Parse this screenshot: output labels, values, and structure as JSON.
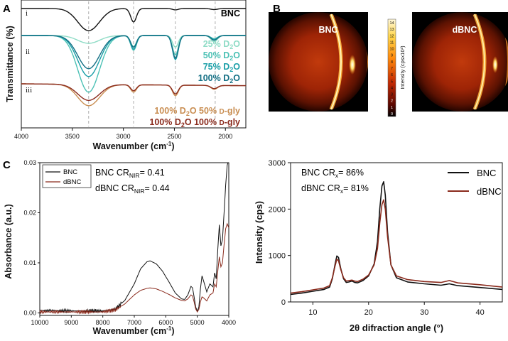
{
  "panel_a": {
    "letter": "A",
    "ylabel": "Transmittance (%)",
    "xlabel_pre": "Wavenumber (cm",
    "xlabel_sup": "-1",
    "xlabel_post": ")",
    "subpanels": [
      "i",
      "ii",
      "iii"
    ],
    "legend_i": {
      "label": "BNC",
      "color": "#111111"
    },
    "legend_ii": [
      {
        "pre": "25%  D",
        "sub": "2",
        "post": "O",
        "color": "#8fdcc6"
      },
      {
        "pre": "50%  D",
        "sub": "2",
        "post": "O",
        "color": "#4cc1b5"
      },
      {
        "pre": "75%  D",
        "sub": "2",
        "post": "O",
        "color": "#1a9fa8"
      },
      {
        "pre": "100% D",
        "sub": "2",
        "post": "O",
        "color": "#146f84"
      }
    ],
    "legend_iii": [
      {
        "pre": "100% D",
        "sub": "2",
        "post": "O 50%  ",
        "small": "D",
        "tail": "-gly",
        "color": "#c98e52"
      },
      {
        "pre": "100% D",
        "sub": "2",
        "post": "O 100% ",
        "small": "D",
        "tail": "-gly",
        "color": "#8a2a1c"
      }
    ]
  },
  "panel_b": {
    "letter": "B",
    "images": [
      {
        "label": "BNC"
      },
      {
        "label": "dBNC"
      }
    ],
    "colorbar_label": "Intensity (cpsx10³)",
    "colorbar_ticks": [
      "0",
      "1",
      "2",
      "3",
      "4",
      "5",
      "6",
      "7",
      "8",
      "9",
      "10",
      "11",
      "12",
      "13",
      "14"
    ]
  },
  "panel_c": {
    "letter": "C",
    "nir_annot_1": {
      "pre": "BNC CR",
      "sub": "NIR",
      "post": "= 0.41"
    },
    "nir_annot_2": {
      "pre": "dBNC CR",
      "sub": "NIR",
      "post": "= 0.44"
    },
    "xrd_annot_1": {
      "pre": "BNC CR",
      "sub": "x",
      "post": "= 86%"
    },
    "xrd_annot_2": {
      "pre": "dBNC CR",
      "sub": "x",
      "post": "= 81%"
    }
  },
  "chart_data": [
    {
      "type": "line",
      "id": "ftir",
      "xlabel": "Wavenumber (cm-1)",
      "ylabel": "Transmittance (%)",
      "xlim": [
        4000,
        1800
      ],
      "x_ticks": [
        4000,
        3500,
        3000,
        2500,
        2000
      ],
      "reference_lines": [
        3340,
        2900,
        2490,
        2100
      ],
      "grid": false,
      "series": [
        {
          "name": "BNC",
          "color": "#111111",
          "group": "i",
          "depths": [
            0.82,
            0.5,
            0.05,
            0.04
          ]
        },
        {
          "name": "25% D2O",
          "color": "#8fdcc6",
          "group": "ii",
          "depths": [
            0.2,
            0.28,
            0.3,
            0.16
          ]
        },
        {
          "name": "50% D2O",
          "color": "#4cc1b5",
          "group": "ii",
          "depths": [
            1.45,
            0.38,
            0.5,
            0.08
          ]
        },
        {
          "name": "75% D2O",
          "color": "#1a9fa8",
          "group": "ii",
          "depths": [
            1.05,
            0.35,
            0.62,
            0.1
          ]
        },
        {
          "name": "100% D2O",
          "color": "#146f84",
          "group": "ii",
          "depths": [
            0.85,
            0.3,
            0.58,
            0.12
          ]
        },
        {
          "name": "100% D2O 50% D-gly",
          "color": "#c98e52",
          "group": "iii",
          "depths": [
            1.0,
            0.35,
            0.5,
            0.18
          ]
        },
        {
          "name": "100% D2O 100% D-gly",
          "color": "#8a2a1c",
          "group": "iii",
          "depths": [
            0.75,
            0.28,
            0.42,
            0.15
          ]
        }
      ]
    },
    {
      "type": "line",
      "id": "nir",
      "xlabel": "Wavenumber (cm-1)",
      "ylabel": "Absorbance (a.u.)",
      "xlim": [
        10000,
        4000
      ],
      "ylim": [
        -0.0005,
        0.03
      ],
      "x_ticks": [
        10000,
        9000,
        8000,
        7000,
        6000,
        5000,
        4000
      ],
      "y_ticks": [
        0.0,
        0.01,
        0.02,
        0.03
      ],
      "y_tick_labels": [
        "0.00",
        "0.01",
        "0.02",
        "0.03"
      ],
      "legend_placement": "top-left",
      "series": [
        {
          "name": "BNC",
          "color": "#111111",
          "x": [
            10000,
            9000,
            8000,
            7600,
            7300,
            7000,
            6800,
            6600,
            6500,
            6300,
            6100,
            5900,
            5700,
            5500,
            5400,
            5300,
            5200,
            5150,
            5100,
            5050,
            5000,
            4950,
            4900,
            4850,
            4800,
            4700,
            4600,
            4500,
            4450,
            4400,
            4350,
            4300,
            4250,
            4200,
            4150,
            4100,
            4050,
            4000
          ],
          "y": [
            0.0005,
            0.0004,
            0.0004,
            0.0008,
            0.0025,
            0.0058,
            0.0088,
            0.0102,
            0.0104,
            0.0098,
            0.0083,
            0.0062,
            0.004,
            0.0028,
            0.0027,
            0.0036,
            0.0053,
            0.005,
            0.0032,
            0.0012,
            0.0003,
            0.0012,
            0.0048,
            0.0074,
            0.0064,
            0.0042,
            0.0058,
            0.0052,
            0.008,
            0.0068,
            0.0126,
            0.0176,
            0.0134,
            0.0146,
            0.0198,
            0.0255,
            0.0295,
            0.031
          ]
        },
        {
          "name": "dBNC",
          "color": "#8a2a1c",
          "x": [
            10000,
            9000,
            8000,
            7600,
            7300,
            7000,
            6800,
            6600,
            6500,
            6300,
            6100,
            5900,
            5700,
            5500,
            5400,
            5300,
            5200,
            5150,
            5100,
            5050,
            5000,
            4950,
            4900,
            4850,
            4800,
            4700,
            4600,
            4500,
            4450,
            4400,
            4350,
            4300,
            4250,
            4200,
            4150,
            4100,
            4050,
            4000
          ],
          "y": [
            0.0002,
            0.0002,
            0.0002,
            0.0006,
            0.0018,
            0.0036,
            0.0045,
            0.0049,
            0.005,
            0.0048,
            0.0043,
            0.0037,
            0.003,
            0.0025,
            0.0024,
            0.0028,
            0.0036,
            0.0034,
            0.0022,
            0.0008,
            0.0002,
            0.0007,
            0.0022,
            0.0032,
            0.003,
            0.0024,
            0.0036,
            0.004,
            0.0058,
            0.0052,
            0.0083,
            0.0112,
            0.0092,
            0.01,
            0.0135,
            0.0168,
            0.0178,
            0.017
          ]
        }
      ]
    },
    {
      "type": "line",
      "id": "xrd",
      "xlabel": "2θ difraction angle (°)",
      "ylabel": "Intensity (cps)",
      "xlim": [
        6,
        44
      ],
      "ylim": [
        0,
        3000
      ],
      "x_ticks": [
        10,
        20,
        30,
        40
      ],
      "y_ticks": [
        0,
        1000,
        2000,
        3000
      ],
      "legend_placement": "top-right",
      "series": [
        {
          "name": "BNC",
          "color": "#111111",
          "x": [
            6,
            8,
            10,
            12,
            13,
            13.5,
            14,
            14.3,
            14.6,
            15,
            15.5,
            16,
            16.5,
            17,
            17.5,
            18,
            19,
            20,
            21,
            21.6,
            22,
            22.4,
            22.7,
            23,
            23.4,
            24,
            25,
            27,
            30,
            33,
            34.5,
            36,
            40,
            44
          ],
          "y": [
            160,
            190,
            230,
            270,
            320,
            500,
            820,
            990,
            960,
            720,
            500,
            420,
            430,
            450,
            420,
            410,
            460,
            560,
            820,
            1300,
            2000,
            2500,
            2590,
            2300,
            1500,
            800,
            520,
            430,
            390,
            360,
            390,
            350,
            310,
            270
          ]
        },
        {
          "name": "dBNC",
          "color": "#8a2a1c",
          "x": [
            6,
            8,
            10,
            12,
            13,
            13.5,
            14,
            14.3,
            14.6,
            15,
            15.5,
            16,
            16.5,
            17,
            17.5,
            18,
            19,
            20,
            21,
            21.6,
            22,
            22.4,
            22.7,
            23,
            23.4,
            24,
            25,
            27,
            30,
            33,
            34.5,
            36,
            40,
            44
          ],
          "y": [
            190,
            220,
            260,
            300,
            350,
            520,
            780,
            920,
            890,
            700,
            520,
            450,
            460,
            470,
            450,
            440,
            490,
            580,
            800,
            1150,
            1700,
            2100,
            2200,
            2000,
            1400,
            800,
            560,
            480,
            440,
            420,
            460,
            410,
            370,
            320
          ]
        }
      ]
    }
  ]
}
